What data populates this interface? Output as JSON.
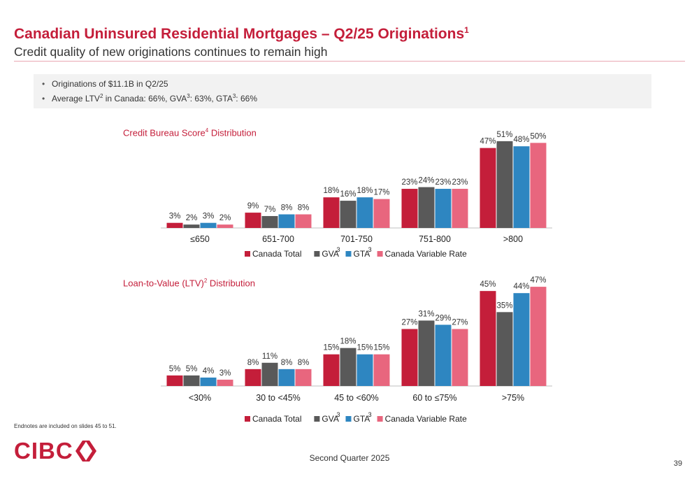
{
  "header": {
    "title": "Canadian Uninsured Residential Mortgages – Q2/25 Originations",
    "title_sup": "1",
    "subtitle": "Credit quality of new originations continues to remain high"
  },
  "bullets": [
    {
      "text": "Originations of $11.1B in Q2/25"
    },
    {
      "parts": [
        "Average LTV",
        "2",
        " in Canada: 66%, GVA",
        "3",
        ": 63%, GTA",
        "3",
        ": 66%"
      ]
    }
  ],
  "colors": {
    "canada_total": "#c41e3a",
    "gva": "#595959",
    "gta": "#2e86c1",
    "canada_variable_rate": "#e8667e",
    "brand_red": "#c41e3a"
  },
  "chart_data": [
    {
      "type": "bar",
      "title": "Credit Bureau Score",
      "title_sup": "4",
      "title_suffix": " Distribution",
      "categories": [
        "≤650",
        "651-700",
        "701-750",
        "751-800",
        ">800"
      ],
      "ylim": [
        0,
        60
      ],
      "grid": false,
      "legend_position": "bottom",
      "series": [
        {
          "name": "Canada Total",
          "sup": "",
          "color": "#c41e3a",
          "values": [
            3,
            9,
            18,
            23,
            47
          ]
        },
        {
          "name": "GVA",
          "sup": "3",
          "color": "#595959",
          "values": [
            2,
            7,
            16,
            24,
            51
          ]
        },
        {
          "name": "GTA",
          "sup": "3",
          "color": "#2e86c1",
          "values": [
            3,
            8,
            18,
            23,
            48
          ]
        },
        {
          "name": "Canada Variable Rate",
          "sup": "",
          "color": "#e8667e",
          "values": [
            2,
            8,
            17,
            23,
            50
          ]
        }
      ]
    },
    {
      "type": "bar",
      "title": "Loan-to-Value (LTV)",
      "title_sup": "2",
      "title_suffix": " Distribution",
      "categories": [
        "<30%",
        "30 to <45%",
        "45 to <60%",
        "60 to ≤75%",
        ">75%"
      ],
      "ylim": [
        0,
        53
      ],
      "grid": false,
      "legend_position": "bottom",
      "series": [
        {
          "name": "Canada Total",
          "sup": "",
          "color": "#c41e3a",
          "values": [
            5,
            8,
            15,
            27,
            45
          ]
        },
        {
          "name": "GVA",
          "sup": "3",
          "color": "#595959",
          "values": [
            5,
            11,
            18,
            31,
            35
          ]
        },
        {
          "name": "GTA",
          "sup": "3",
          "color": "#2e86c1",
          "values": [
            4,
            8,
            15,
            29,
            44
          ]
        },
        {
          "name": "Canada Variable Rate",
          "sup": "",
          "color": "#e8667e",
          "values": [
            3,
            8,
            15,
            27,
            47
          ]
        }
      ]
    }
  ],
  "footer": {
    "endnotes": "Endnotes are included on slides 45 to 51.",
    "logo_text": "CIBC",
    "center": "Second Quarter 2025",
    "page_number": "39"
  }
}
